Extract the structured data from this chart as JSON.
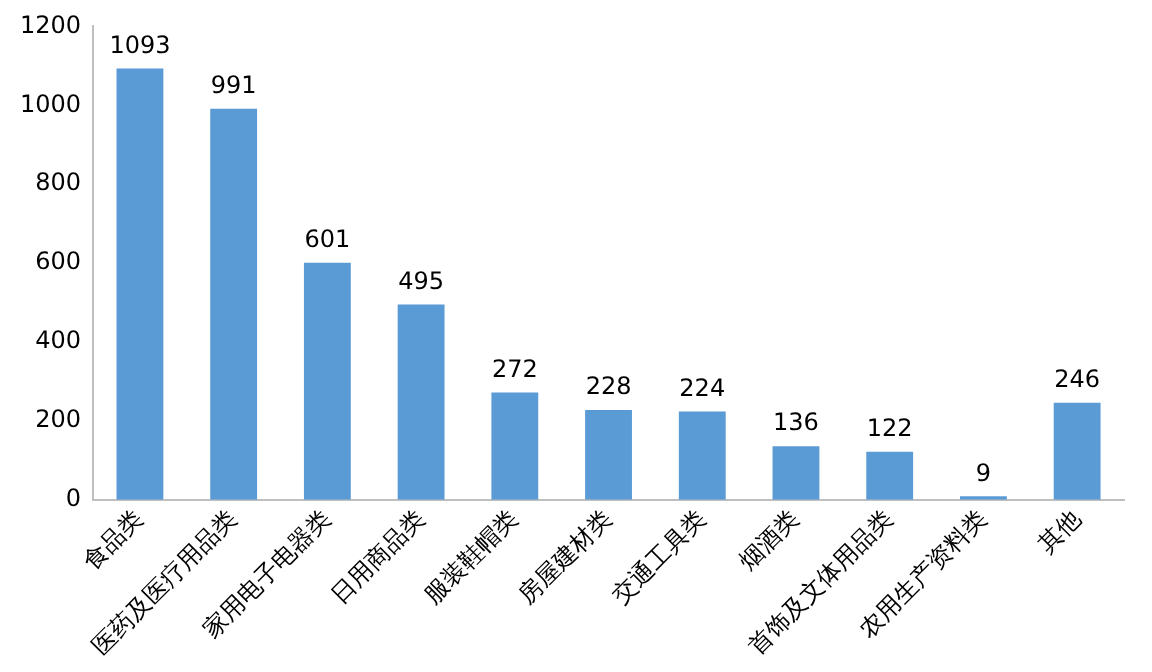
{
  "chart_data": {
    "type": "bar",
    "categories": [
      "食品类",
      "医药及医疗用品类",
      "家用电子电器类",
      "日用商品类",
      "服装鞋帽类",
      "房屋建材类",
      "交通工具类",
      "烟酒类",
      "首饰及文体用品类",
      "农用生产资料类",
      "其他"
    ],
    "values": [
      1093,
      991,
      601,
      495,
      272,
      228,
      224,
      136,
      122,
      9,
      246
    ],
    "color": "#5b9bd5",
    "ylim": [
      0,
      1200
    ],
    "yticks": [
      0,
      200,
      400,
      600,
      800,
      1000,
      1200
    ],
    "grid": false,
    "legend": false,
    "data_labels": true
  }
}
